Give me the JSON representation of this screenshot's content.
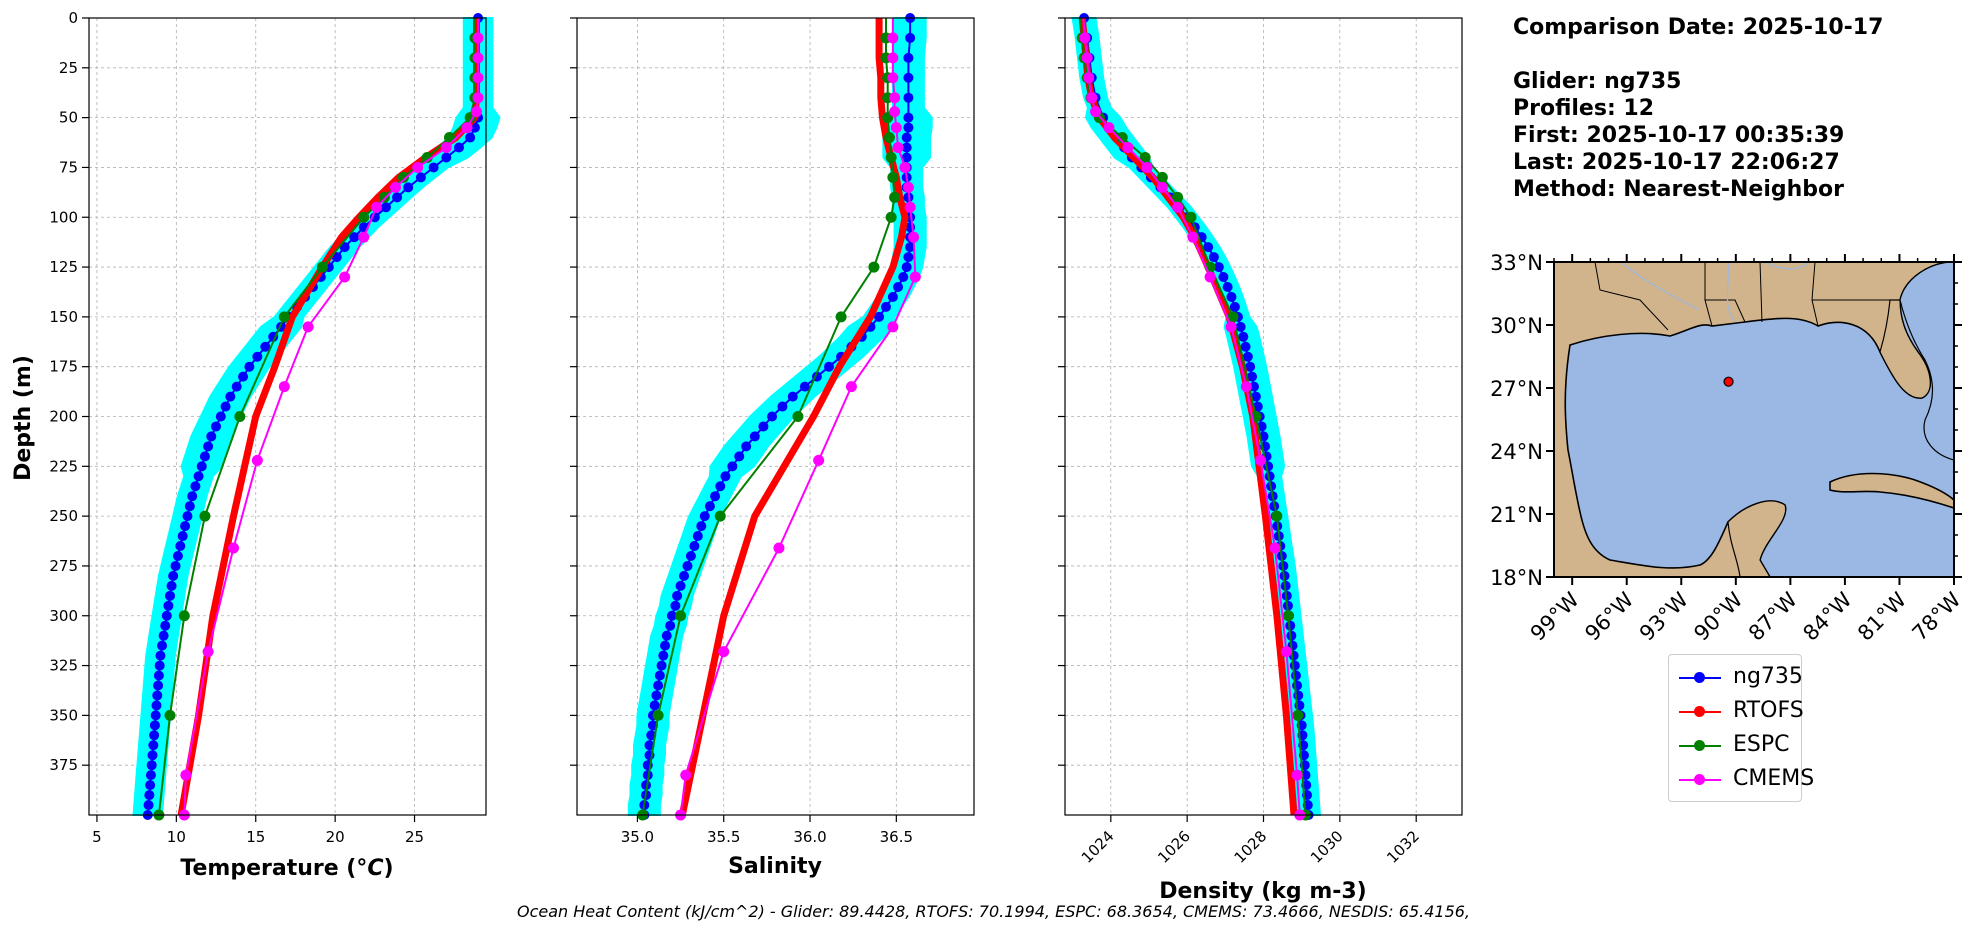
{
  "info": {
    "comparison_date": "Comparison Date: 2025-10-17",
    "glider": "Glider: ng735",
    "profiles": "Profiles: 12",
    "first": "First: 2025-10-17 00:35:39",
    "last": "Last: 2025-10-17 22:06:27",
    "method": "Method: Nearest-Neighbor"
  },
  "footer": "Ocean Heat Content (kJ/cm^2) - Glider: 89.4428,  RTOFS: 70.1994,  ESPC: 68.3654,  CMEMS: 73.4666,  NESDIS: 65.4156,",
  "colors": {
    "ng735": "#0000ff",
    "RTOFS": "#ff0000",
    "ESPC": "#008000",
    "CMEMS": "#ff00ff",
    "spread": "#00ffff",
    "land": "#d2b48c",
    "ocean": "#9ab8e3"
  },
  "legend": [
    "ng735",
    "RTOFS",
    "ESPC",
    "CMEMS"
  ],
  "chart_data": [
    {
      "type": "line",
      "xlabel": "Temperature (°C)",
      "ylabel": "Depth (m)",
      "xlim": [
        4.5,
        29.5
      ],
      "ylim": [
        400,
        0
      ],
      "xticks": [
        5,
        10,
        15,
        20,
        25
      ],
      "yticks": [
        0,
        25,
        50,
        75,
        100,
        125,
        150,
        175,
        200,
        225,
        250,
        275,
        300,
        325,
        350,
        375
      ],
      "grid": true,
      "series": [
        {
          "name": "ng735",
          "depths": [
            0,
            10,
            20,
            30,
            40,
            50,
            55,
            60,
            65,
            70,
            75,
            80,
            85,
            90,
            95,
            100,
            105,
            110,
            115,
            120,
            125,
            130,
            135,
            140,
            145,
            150,
            155,
            160,
            165,
            170,
            175,
            180,
            185,
            190,
            195,
            200,
            205,
            210,
            215,
            220,
            225,
            230,
            235,
            240,
            245,
            250,
            255,
            260,
            265,
            270,
            275,
            280,
            285,
            290,
            295,
            300,
            305,
            310,
            315,
            320,
            325,
            330,
            335,
            340,
            345,
            350,
            355,
            360,
            365,
            370,
            375,
            380,
            385,
            390,
            395,
            400
          ],
          "values": [
            29.0,
            29.0,
            29.0,
            29.0,
            29.0,
            29.0,
            28.8,
            28.5,
            27.8,
            27.0,
            26.2,
            25.4,
            24.6,
            23.9,
            23.2,
            22.5,
            21.8,
            21.2,
            20.6,
            20.1,
            19.6,
            19.1,
            18.6,
            18.1,
            17.6,
            17.1,
            16.6,
            16.1,
            15.6,
            15.1,
            14.6,
            14.2,
            13.8,
            13.4,
            13.1,
            12.8,
            12.5,
            12.2,
            12.0,
            11.8,
            11.6,
            11.4,
            11.2,
            11.0,
            10.85,
            10.7,
            10.55,
            10.4,
            10.25,
            10.1,
            9.95,
            9.8,
            9.7,
            9.6,
            9.5,
            9.4,
            9.3,
            9.2,
            9.1,
            9.0,
            8.95,
            8.9,
            8.85,
            8.8,
            8.75,
            8.7,
            8.65,
            8.6,
            8.55,
            8.5,
            8.45,
            8.4,
            8.35,
            8.3,
            8.25,
            8.2
          ]
        },
        {
          "name": "RTOFS",
          "depths": [
            0,
            10,
            20,
            30,
            40,
            50,
            60,
            70,
            80,
            90,
            100,
            110,
            125,
            150,
            175,
            200,
            250,
            300,
            350,
            400
          ],
          "values": [
            28.9,
            28.9,
            28.9,
            28.9,
            28.9,
            28.8,
            27.6,
            25.7,
            24.0,
            22.7,
            21.5,
            20.4,
            19.2,
            17.3,
            16.2,
            15.0,
            13.6,
            12.3,
            11.4,
            10.3
          ]
        },
        {
          "name": "ESPC",
          "depths": [
            0,
            10,
            20,
            30,
            40,
            50,
            60,
            70,
            80,
            90,
            100,
            125,
            150,
            200,
            250,
            300,
            350,
            400
          ],
          "values": [
            28.8,
            28.8,
            28.8,
            28.8,
            28.8,
            28.5,
            27.2,
            25.8,
            24.3,
            23.1,
            21.8,
            19.2,
            16.8,
            14.0,
            11.8,
            10.5,
            9.6,
            8.9
          ]
        },
        {
          "name": "CMEMS",
          "depths": [
            0,
            10,
            20,
            30,
            40,
            47,
            55,
            65,
            75,
            85,
            95,
            110,
            130,
            155,
            185,
            222,
            266,
            318,
            380,
            400
          ],
          "values": [
            29.0,
            29.0,
            29.0,
            29.0,
            29.0,
            28.9,
            28.3,
            27.0,
            25.2,
            23.8,
            22.6,
            21.8,
            20.6,
            18.3,
            16.8,
            15.1,
            13.6,
            12.0,
            10.6,
            10.5
          ]
        }
      ]
    },
    {
      "type": "line",
      "xlabel": "Salinity",
      "ylim": [
        400,
        0
      ],
      "xlim": [
        34.65,
        36.95
      ],
      "xticks": [
        35.0,
        35.5,
        36.0,
        36.5
      ],
      "xticklabels": [
        "35.0",
        "35.5",
        "36.0",
        "36.5"
      ],
      "grid": true,
      "series": [
        {
          "name": "ng735",
          "depths": [
            0,
            10,
            20,
            30,
            40,
            50,
            55,
            60,
            65,
            70,
            75,
            80,
            85,
            90,
            95,
            100,
            105,
            110,
            115,
            120,
            125,
            130,
            135,
            140,
            145,
            150,
            155,
            160,
            165,
            170,
            175,
            180,
            185,
            190,
            195,
            200,
            205,
            210,
            215,
            220,
            225,
            230,
            235,
            240,
            245,
            250,
            255,
            260,
            265,
            270,
            275,
            280,
            285,
            290,
            295,
            300,
            305,
            310,
            315,
            320,
            325,
            330,
            335,
            340,
            345,
            350,
            355,
            360,
            365,
            370,
            375,
            380,
            385,
            390,
            395,
            400
          ],
          "values": [
            36.58,
            36.58,
            36.57,
            36.57,
            36.57,
            36.57,
            36.57,
            36.56,
            36.56,
            36.56,
            36.56,
            36.56,
            36.56,
            36.57,
            36.57,
            36.58,
            36.58,
            36.58,
            36.58,
            36.57,
            36.56,
            36.54,
            36.51,
            36.48,
            36.44,
            36.4,
            36.35,
            36.3,
            36.24,
            36.18,
            36.11,
            36.04,
            35.97,
            35.9,
            35.84,
            35.78,
            35.73,
            35.68,
            35.63,
            35.59,
            35.55,
            35.51,
            35.48,
            35.45,
            35.42,
            35.39,
            35.37,
            35.35,
            35.33,
            35.31,
            35.29,
            35.27,
            35.25,
            35.23,
            35.22,
            35.2,
            35.19,
            35.17,
            35.16,
            35.15,
            35.14,
            35.13,
            35.12,
            35.11,
            35.1,
            35.09,
            35.09,
            35.08,
            35.07,
            35.07,
            35.06,
            35.06,
            35.05,
            35.05,
            35.04,
            35.04
          ]
        },
        {
          "name": "RTOFS",
          "depths": [
            0,
            10,
            20,
            30,
            40,
            50,
            60,
            70,
            80,
            90,
            100,
            110,
            125,
            150,
            175,
            200,
            250,
            300,
            350,
            400
          ],
          "values": [
            36.4,
            36.4,
            36.4,
            36.41,
            36.41,
            36.42,
            36.44,
            36.47,
            36.5,
            36.52,
            36.55,
            36.53,
            36.48,
            36.35,
            36.17,
            36.02,
            35.68,
            35.5,
            35.38,
            35.26
          ]
        },
        {
          "name": "ESPC",
          "depths": [
            0,
            10,
            20,
            30,
            40,
            50,
            60,
            70,
            80,
            90,
            100,
            125,
            150,
            200,
            250,
            300,
            350,
            400
          ],
          "values": [
            36.44,
            36.44,
            36.44,
            36.45,
            36.45,
            36.45,
            36.46,
            36.47,
            36.48,
            36.49,
            36.47,
            36.37,
            36.18,
            35.93,
            35.48,
            35.25,
            35.12,
            35.03
          ]
        },
        {
          "name": "CMEMS",
          "depths": [
            0,
            10,
            20,
            30,
            40,
            47,
            55,
            65,
            75,
            85,
            95,
            110,
            130,
            155,
            185,
            222,
            266,
            318,
            380,
            400
          ],
          "values": [
            36.48,
            36.48,
            36.48,
            36.48,
            36.49,
            36.49,
            36.5,
            36.51,
            36.55,
            36.57,
            36.58,
            36.6,
            36.61,
            36.48,
            36.24,
            36.05,
            35.82,
            35.5,
            35.28,
            35.25
          ]
        }
      ]
    },
    {
      "type": "line",
      "xlabel": "Density (kg m-3)",
      "ylim": [
        400,
        0
      ],
      "xlim": [
        1022.8,
        1033.2
      ],
      "xticks": [
        1024,
        1026,
        1028,
        1030,
        1032
      ],
      "grid": true,
      "series": [
        {
          "name": "ng735",
          "depths": [
            0,
            10,
            20,
            30,
            40,
            50,
            55,
            60,
            65,
            70,
            75,
            80,
            85,
            90,
            95,
            100,
            105,
            110,
            115,
            120,
            125,
            130,
            135,
            140,
            145,
            150,
            155,
            160,
            165,
            170,
            175,
            180,
            185,
            190,
            195,
            200,
            205,
            210,
            215,
            220,
            225,
            230,
            235,
            240,
            245,
            250,
            255,
            260,
            265,
            270,
            275,
            280,
            285,
            290,
            295,
            300,
            305,
            310,
            315,
            320,
            325,
            330,
            335,
            340,
            345,
            350,
            355,
            360,
            365,
            370,
            375,
            380,
            385,
            390,
            395,
            400
          ],
          "values": [
            1023.3,
            1023.38,
            1023.44,
            1023.5,
            1023.6,
            1023.8,
            1023.95,
            1024.15,
            1024.35,
            1024.55,
            1024.8,
            1025.05,
            1025.3,
            1025.55,
            1025.8,
            1026.0,
            1026.2,
            1026.38,
            1026.55,
            1026.7,
            1026.83,
            1026.95,
            1027.06,
            1027.16,
            1027.25,
            1027.33,
            1027.4,
            1027.47,
            1027.53,
            1027.59,
            1027.65,
            1027.7,
            1027.75,
            1027.8,
            1027.85,
            1027.9,
            1027.95,
            1028.0,
            1028.04,
            1028.08,
            1028.12,
            1028.16,
            1028.2,
            1028.24,
            1028.28,
            1028.32,
            1028.36,
            1028.4,
            1028.44,
            1028.48,
            1028.52,
            1028.55,
            1028.58,
            1028.61,
            1028.64,
            1028.67,
            1028.7,
            1028.73,
            1028.76,
            1028.79,
            1028.82,
            1028.85,
            1028.88,
            1028.91,
            1028.94,
            1028.97,
            1029.0,
            1029.02,
            1029.04,
            1029.06,
            1029.08,
            1029.1,
            1029.12,
            1029.14,
            1029.16,
            1029.18
          ]
        },
        {
          "name": "RTOFS",
          "depths": [
            0,
            10,
            20,
            30,
            40,
            50,
            60,
            70,
            80,
            90,
            100,
            110,
            125,
            150,
            175,
            200,
            250,
            300,
            350,
            400
          ],
          "values": [
            1023.25,
            1023.3,
            1023.35,
            1023.4,
            1023.5,
            1023.7,
            1024.1,
            1024.6,
            1025.1,
            1025.5,
            1025.9,
            1026.2,
            1026.55,
            1027.1,
            1027.45,
            1027.72,
            1028.05,
            1028.35,
            1028.6,
            1028.8
          ]
        },
        {
          "name": "ESPC",
          "depths": [
            0,
            10,
            20,
            30,
            40,
            50,
            60,
            70,
            80,
            90,
            100,
            125,
            150,
            200,
            250,
            300,
            350,
            400
          ],
          "values": [
            1023.2,
            1023.25,
            1023.3,
            1023.38,
            1023.48,
            1023.7,
            1024.3,
            1024.9,
            1025.35,
            1025.75,
            1026.1,
            1026.6,
            1027.2,
            1027.8,
            1028.35,
            1028.65,
            1028.9,
            1029.1
          ]
        },
        {
          "name": "CMEMS",
          "depths": [
            0,
            10,
            20,
            30,
            40,
            47,
            55,
            65,
            75,
            85,
            95,
            110,
            130,
            155,
            185,
            222,
            266,
            318,
            380,
            400
          ],
          "values": [
            1023.28,
            1023.32,
            1023.38,
            1023.42,
            1023.5,
            1023.6,
            1023.95,
            1024.45,
            1024.95,
            1025.35,
            1025.75,
            1026.15,
            1026.6,
            1027.15,
            1027.55,
            1027.92,
            1028.3,
            1028.6,
            1028.88,
            1028.95
          ]
        }
      ]
    },
    {
      "type": "map",
      "lat_ticks": [
        "18°N",
        "21°N",
        "24°N",
        "27°N",
        "30°N",
        "33°N"
      ],
      "lon_ticks": [
        "99°W",
        "96°W",
        "93°W",
        "90°W",
        "87°W",
        "84°W",
        "81°W",
        "78°W"
      ],
      "extent": [
        -100,
        -78,
        18,
        33
      ],
      "marker": {
        "lon": -90.4,
        "lat": 27.3
      }
    }
  ]
}
